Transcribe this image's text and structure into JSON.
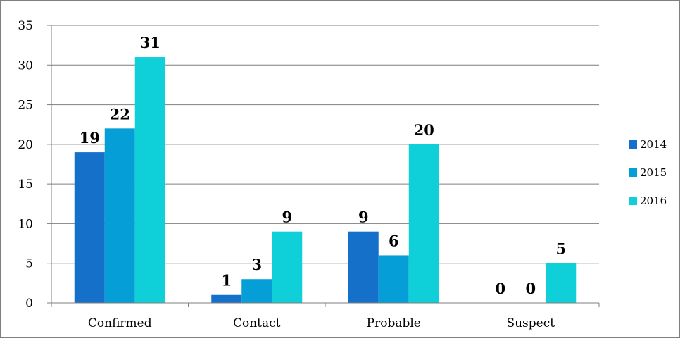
{
  "chart_data": {
    "type": "bar",
    "categories": [
      "Confirmed",
      "Contact",
      "Probable",
      "Suspect"
    ],
    "series": [
      {
        "name": "2014",
        "values": [
          19,
          1,
          9,
          0
        ],
        "color": "#1470C8"
      },
      {
        "name": "2015",
        "values": [
          22,
          3,
          6,
          0
        ],
        "color": "#069ED6"
      },
      {
        "name": "2016",
        "values": [
          31,
          9,
          20,
          5
        ],
        "color": "#0FD0D8"
      }
    ],
    "ylim": [
      0,
      35
    ],
    "yticks": [
      0,
      5,
      10,
      15,
      20,
      25,
      30,
      35
    ],
    "grid": true,
    "legend": "right",
    "data_labels": [
      [
        "19",
        "1",
        "9",
        "0"
      ],
      [
        "22",
        "3",
        "6",
        "0"
      ],
      [
        "31",
        "9",
        "20",
        "5"
      ]
    ],
    "title": "",
    "xlabel": "",
    "ylabel": ""
  }
}
